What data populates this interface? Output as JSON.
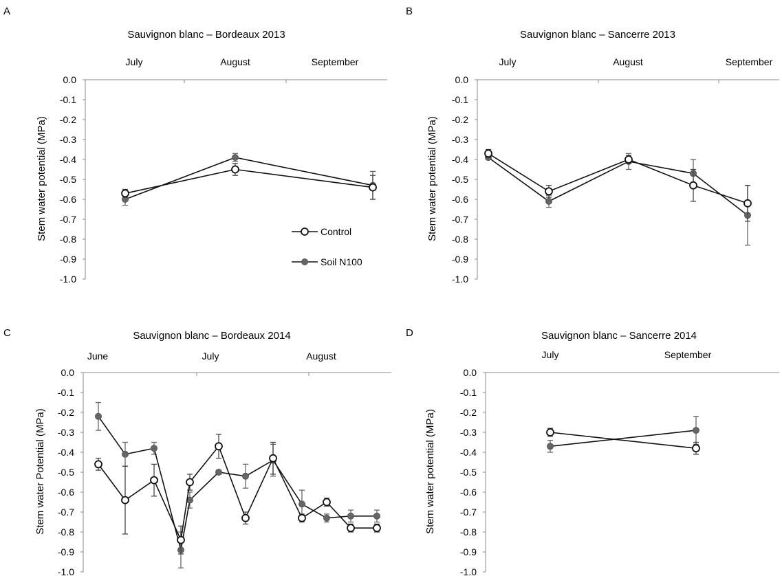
{
  "chart_data": [
    {
      "panel": "A",
      "type": "line",
      "title": "Sauvignon blanc – Bordeaux 2013",
      "ylabel": "Stem water potential (MPa)",
      "ylim": [
        -1.0,
        0.0
      ],
      "yticks": [
        "0.0",
        "-0.1",
        "-0.2",
        "-0.3",
        "-0.4",
        "-0.5",
        "-0.6",
        "-0.7",
        "-0.8",
        "-0.9",
        "-1.0"
      ],
      "month_labels": [
        "July",
        "August",
        "September"
      ],
      "series": [
        {
          "name": "Control",
          "x": [
            0,
            1,
            2
          ],
          "values": [
            -0.57,
            -0.45,
            -0.54
          ],
          "err": [
            0.02,
            0.03,
            0.06
          ]
        },
        {
          "name": "Soil N100",
          "x": [
            0,
            1,
            2
          ],
          "values": [
            -0.6,
            -0.39,
            -0.53
          ],
          "err": [
            0.03,
            0.02,
            0.07
          ]
        }
      ],
      "legend": {
        "placement": "bottom-right",
        "entries": [
          "Control",
          "Soil N100"
        ]
      }
    },
    {
      "panel": "B",
      "type": "line",
      "title": "Sauvignon blanc – Sancerre 2013",
      "ylabel": "Stem water potential (MPa)",
      "ylim": [
        -1.0,
        0.0
      ],
      "yticks": [
        "0.0",
        "-0.1",
        "-0.2",
        "-0.3",
        "-0.4",
        "-0.5",
        "-0.6",
        "-0.7",
        "-0.8",
        "-0.9",
        "-1.0"
      ],
      "month_labels": [
        "July",
        "August",
        "September"
      ],
      "series": [
        {
          "name": "Control",
          "x": [
            0,
            1,
            2,
            3,
            4
          ],
          "values": [
            -0.37,
            -0.56,
            -0.4,
            -0.53,
            -0.62
          ],
          "err": [
            0.02,
            0.03,
            0.02,
            0.08,
            0.09
          ]
        },
        {
          "name": "Soil N100",
          "x": [
            0,
            1,
            2,
            3,
            4
          ],
          "values": [
            -0.39,
            -0.61,
            -0.41,
            -0.47,
            -0.68
          ],
          "err": [
            0.01,
            0.03,
            0.04,
            0.07,
            0.15
          ]
        }
      ]
    },
    {
      "panel": "C",
      "type": "line",
      "title": "Sauvignon blanc – Bordeaux 2014",
      "ylabel": "Stem water Potential (MPa)",
      "ylim": [
        -1.0,
        0.0
      ],
      "yticks": [
        "0.0",
        "-0.1",
        "-0.2",
        "-0.3",
        "-0.4",
        "-0.5",
        "-0.6",
        "-0.7",
        "-0.8",
        "-0.9",
        "-1.0"
      ],
      "month_labels": [
        "June",
        "July",
        "August"
      ],
      "series": [
        {
          "name": "Control",
          "x": [
            0,
            1,
            2,
            3,
            4,
            5,
            6,
            7,
            8,
            9,
            10,
            11
          ],
          "values": [
            -0.46,
            -0.64,
            -0.54,
            -0.84,
            -0.55,
            -0.37,
            -0.73,
            -0.43,
            -0.73,
            -0.65,
            -0.78,
            -0.78
          ],
          "err": [
            0.03,
            0.17,
            0.08,
            0.07,
            0.04,
            0.06,
            0.03,
            0.08,
            0.02,
            0.02,
            0.02,
            0.02
          ]
        },
        {
          "name": "Soil N100",
          "x": [
            0,
            1,
            2,
            3,
            4,
            5,
            6,
            7,
            8,
            9,
            10,
            11
          ],
          "values": [
            -0.22,
            -0.41,
            -0.38,
            -0.89,
            -0.64,
            -0.5,
            -0.52,
            -0.44,
            -0.66,
            -0.73,
            -0.72,
            -0.72
          ],
          "err": [
            0.07,
            0.06,
            0.03,
            0.09,
            0.04,
            0.01,
            0.06,
            0.08,
            0.07,
            0.02,
            0.03,
            0.03
          ]
        }
      ]
    },
    {
      "panel": "D",
      "type": "line",
      "title": "Sauvignon blanc – Sancerre 2014",
      "ylabel": "Stem water potential (MPa)",
      "ylim": [
        -1.0,
        0.0
      ],
      "yticks": [
        "0.0",
        "-0.1",
        "-0.2",
        "-0.3",
        "-0.4",
        "-0.5",
        "-0.6",
        "-0.7",
        "-0.8",
        "-0.9",
        "-1.0"
      ],
      "month_labels": [
        "July",
        "September"
      ],
      "series": [
        {
          "name": "Control",
          "x": [
            0,
            1
          ],
          "values": [
            -0.3,
            -0.38
          ],
          "err": [
            0.02,
            0.03
          ]
        },
        {
          "name": "Soil N100",
          "x": [
            0,
            1
          ],
          "values": [
            -0.37,
            -0.29
          ],
          "err": [
            0.03,
            0.07
          ]
        }
      ]
    }
  ]
}
